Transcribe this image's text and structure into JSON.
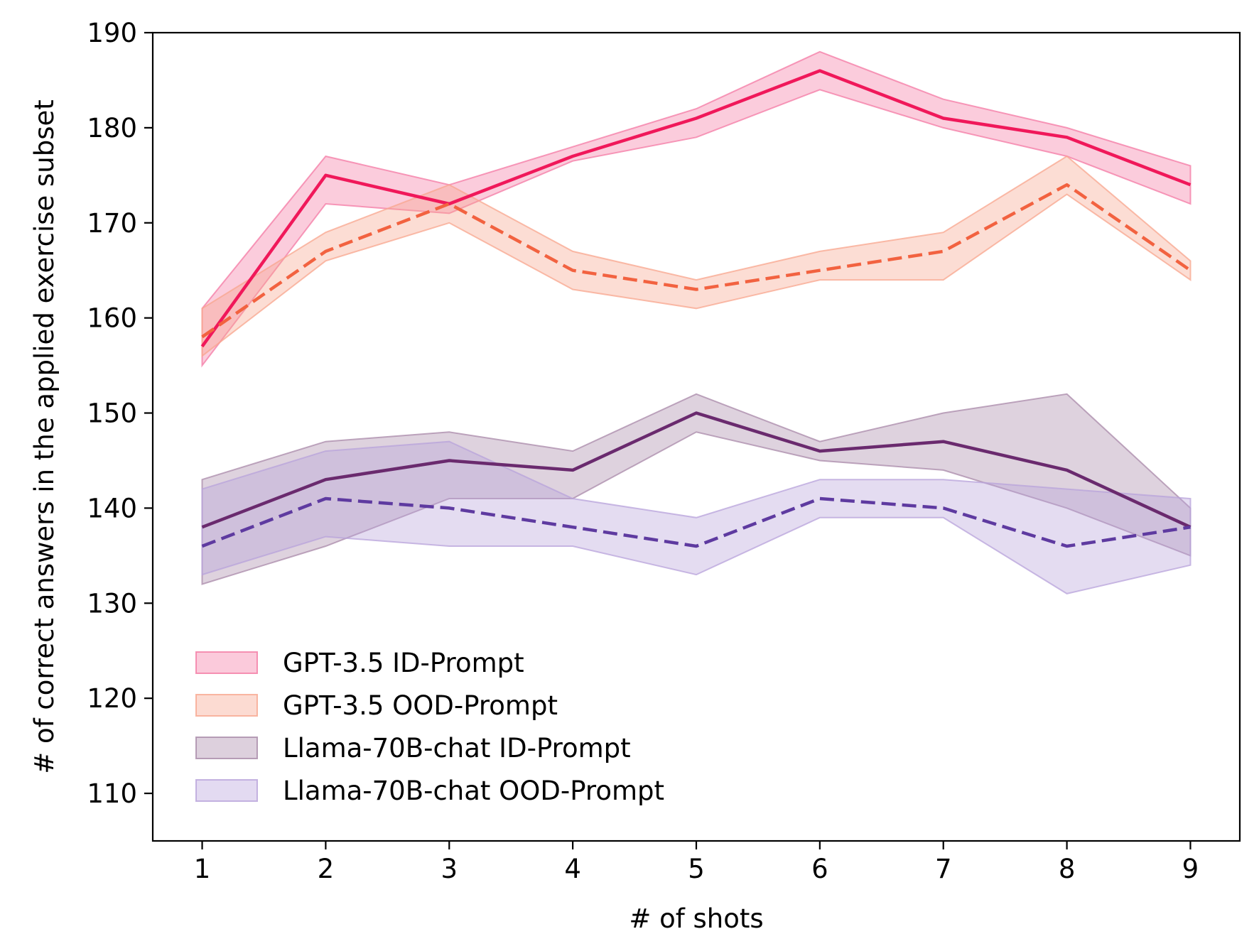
{
  "chart_data": {
    "type": "line",
    "title": "",
    "xlabel": "# of shots",
    "ylabel": "# of correct answers in the applied exercise subset",
    "xlim": [
      0.6,
      9.4
    ],
    "ylim": [
      105,
      190
    ],
    "grid": false,
    "legend_position": "lower-left",
    "x": [
      1,
      2,
      3,
      4,
      5,
      6,
      7,
      8,
      9
    ],
    "x_ticks": [
      "1",
      "2",
      "3",
      "4",
      "5",
      "6",
      "7",
      "8",
      "9"
    ],
    "y_ticks": [
      "110",
      "120",
      "130",
      "140",
      "150",
      "160",
      "170",
      "180",
      "190"
    ],
    "series": [
      {
        "name": "GPT-3.5 ID-Prompt",
        "color": "#f0185a",
        "fill_color": "#f47aa4",
        "line_style": "solid",
        "values": [
          157,
          175,
          172,
          177,
          181,
          186,
          181,
          179,
          174
        ],
        "lower": [
          155,
          172,
          171,
          176.5,
          179,
          184,
          180,
          177,
          172
        ],
        "upper": [
          161,
          177,
          174,
          178,
          182,
          188,
          183,
          180,
          176
        ]
      },
      {
        "name": "GPT-3.5 OOD-Prompt",
        "color": "#f26240",
        "fill_color": "#f8a68e",
        "line_style": "dashed",
        "values": [
          158,
          167,
          172,
          165,
          163,
          165,
          167,
          174,
          165
        ],
        "lower": [
          156,
          166,
          170,
          163,
          161,
          164,
          164,
          173,
          164
        ],
        "upper": [
          161,
          169,
          174,
          167,
          164,
          167,
          169,
          177,
          166
        ]
      },
      {
        "name": "Llama-70B-chat ID-Prompt",
        "color": "#6a2a6e",
        "fill_color": "#a98aa9",
        "line_style": "solid",
        "values": [
          138,
          143,
          145,
          144,
          150,
          146,
          147,
          144,
          138
        ],
        "lower": [
          132,
          136,
          141,
          141,
          148,
          145,
          144,
          140,
          135
        ],
        "upper": [
          143,
          147,
          148,
          146,
          152,
          147,
          150,
          152,
          140
        ]
      },
      {
        "name": "Llama-70B-chat OOD-Prompt",
        "color": "#5e3aa0",
        "fill_color": "#b8a3db",
        "line_style": "dashed",
        "values": [
          136,
          141,
          140,
          138,
          136,
          141,
          140,
          136,
          138
        ],
        "lower": [
          133,
          137,
          136,
          136,
          133,
          139,
          139,
          131,
          134
        ],
        "upper": [
          142,
          146,
          147,
          141,
          139,
          143,
          143,
          142,
          141
        ]
      }
    ]
  }
}
